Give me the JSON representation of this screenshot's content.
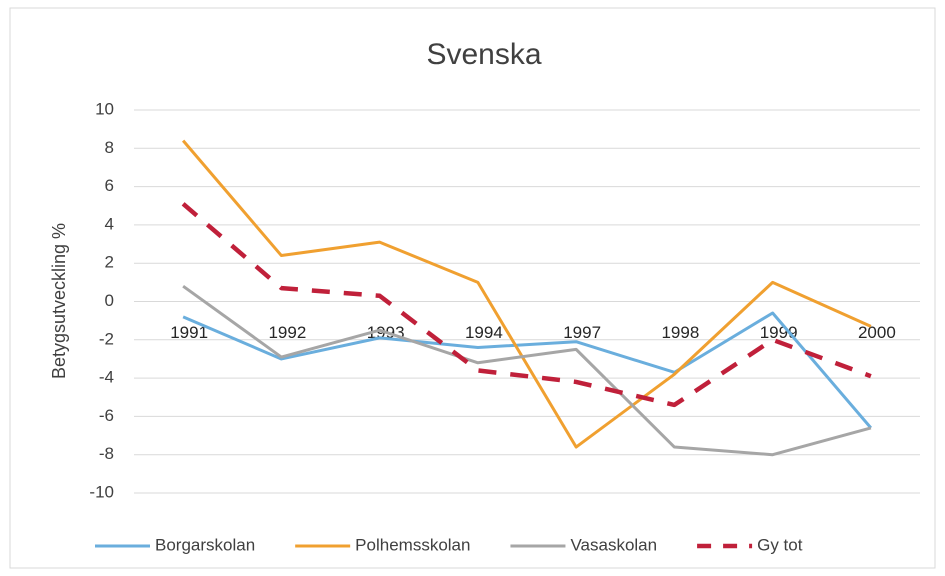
{
  "chart_data": {
    "type": "line",
    "title": "Svenska",
    "y_label": "Betygsutveckling %",
    "categories": [
      "1991",
      "1992",
      "1993",
      "1994",
      "1997",
      "1998",
      "1999",
      "2000"
    ],
    "series": [
      {
        "name": "Borgarskolan",
        "color": "#6aaedd",
        "values": [
          -0.8,
          -3.0,
          -1.9,
          -2.4,
          -2.1,
          -3.7,
          -0.6,
          -6.6
        ]
      },
      {
        "name": "Polhemsskolan",
        "color": "#f0a030",
        "values": [
          8.4,
          2.4,
          3.1,
          1.0,
          -7.6,
          -3.8,
          1.0,
          -1.3
        ]
      },
      {
        "name": "Vasaskolan",
        "color": "#a6a6a6",
        "values": [
          0.8,
          -2.9,
          -1.5,
          -3.2,
          -2.5,
          -7.6,
          -8.0,
          -6.6
        ]
      },
      {
        "name": "Gy tot",
        "color": "#c0203a",
        "dashed": true,
        "values": [
          5.1,
          0.7,
          0.3,
          -3.6,
          -4.2,
          -5.4,
          -2.0,
          -3.9
        ]
      }
    ],
    "ylim": [
      -10,
      10
    ],
    "yticks": [
      -10,
      -8,
      -6,
      -4,
      -2,
      0,
      2,
      4,
      6,
      8,
      10
    ],
    "grid": true,
    "legend": "bottom"
  }
}
